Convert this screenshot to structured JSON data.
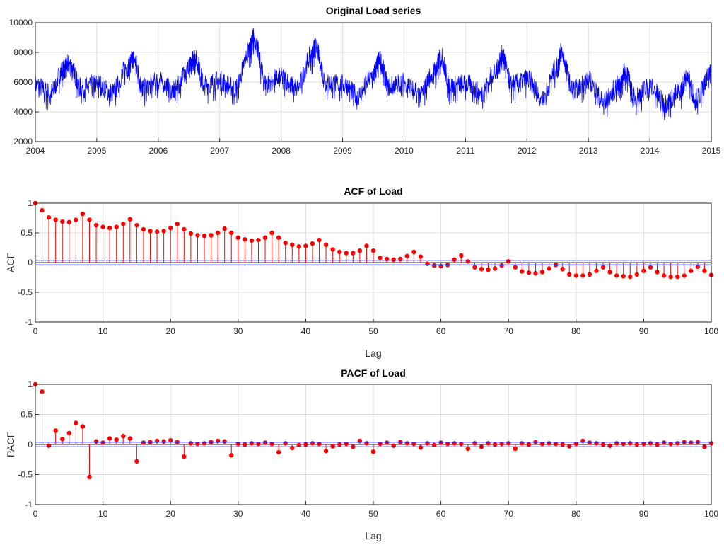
{
  "colors": {
    "series_line": "#0000ff",
    "stem": "#ff0000",
    "bound": "#0000cc",
    "grid": "#dcdcdc",
    "axis": "#262626"
  },
  "chart_data": [
    {
      "type": "line",
      "title": "Original Load series",
      "xlabel": "",
      "ylabel": "",
      "xlim": [
        2004,
        2015
      ],
      "ylim": [
        2000,
        10000
      ],
      "xticks": [
        "2004",
        "2005",
        "2006",
        "2007",
        "2008",
        "2009",
        "2010",
        "2011",
        "2012",
        "2013",
        "2014",
        "2015"
      ],
      "yticks": [
        "2000",
        "4000",
        "6000",
        "8000",
        "10000"
      ],
      "grid": true,
      "series": [
        {
          "x": [
            2004.0,
            2004.25,
            2004.45,
            2004.55,
            2004.75,
            2005.0,
            2005.25,
            2005.5,
            2005.6,
            2005.75,
            2006.0,
            2006.25,
            2006.5,
            2006.6,
            2006.75,
            2007.0,
            2007.25,
            2007.5,
            2007.55,
            2007.75,
            2008.0,
            2008.25,
            2008.5,
            2008.55,
            2008.75,
            2009.0,
            2009.25,
            2009.5,
            2009.6,
            2009.75,
            2010.0,
            2010.25,
            2010.5,
            2010.6,
            2010.75,
            2011.0,
            2011.25,
            2011.5,
            2011.6,
            2011.75,
            2012.0,
            2012.25,
            2012.5,
            2012.55,
            2012.75,
            2013.0,
            2013.25,
            2013.5,
            2013.6,
            2013.75,
            2014.0,
            2014.25,
            2014.5,
            2014.6,
            2014.75,
            2015.0
          ],
          "y": [
            5800,
            5300,
            6800,
            7200,
            5600,
            5900,
            5300,
            7000,
            7600,
            5600,
            6100,
            5400,
            7000,
            7700,
            5800,
            6100,
            5600,
            8300,
            9000,
            6000,
            6300,
            5600,
            7800,
            8300,
            5900,
            5900,
            5100,
            6500,
            7500,
            5700,
            6000,
            5200,
            6700,
            7700,
            5700,
            5900,
            5300,
            6800,
            7800,
            5800,
            6200,
            5000,
            7000,
            8000,
            5500,
            6100,
            4700,
            5800,
            6700,
            5000,
            5700,
            4600,
            5400,
            6400,
            4900,
            6500
          ]
        }
      ]
    },
    {
      "type": "stem",
      "title": "ACF of Load",
      "xlabel": "Lag",
      "ylabel": "ACF",
      "xlim": [
        0,
        100
      ],
      "ylim": [
        -1,
        1
      ],
      "xticks": [
        "0",
        "10",
        "20",
        "30",
        "40",
        "50",
        "60",
        "70",
        "80",
        "90",
        "100"
      ],
      "yticks": [
        "-1",
        "-0.5",
        "0",
        "0.5",
        "1"
      ],
      "bounds": [
        0.04,
        -0.04
      ],
      "grid": true,
      "values": [
        1.0,
        0.88,
        0.76,
        0.72,
        0.69,
        0.68,
        0.72,
        0.82,
        0.72,
        0.63,
        0.6,
        0.58,
        0.6,
        0.65,
        0.73,
        0.63,
        0.56,
        0.53,
        0.52,
        0.53,
        0.58,
        0.65,
        0.56,
        0.49,
        0.46,
        0.45,
        0.46,
        0.5,
        0.57,
        0.5,
        0.42,
        0.39,
        0.37,
        0.38,
        0.42,
        0.5,
        0.42,
        0.33,
        0.3,
        0.27,
        0.28,
        0.32,
        0.38,
        0.3,
        0.22,
        0.18,
        0.16,
        0.16,
        0.2,
        0.28,
        0.2,
        0.08,
        0.06,
        0.05,
        0.06,
        0.11,
        0.18,
        0.1,
        -0.02,
        -0.05,
        -0.06,
        -0.04,
        0.05,
        0.12,
        0.02,
        -0.08,
        -0.11,
        -0.12,
        -0.1,
        -0.05,
        0.02,
        -0.08,
        -0.15,
        -0.17,
        -0.18,
        -0.16,
        -0.1,
        -0.04,
        -0.11,
        -0.2,
        -0.22,
        -0.22,
        -0.2,
        -0.14,
        -0.08,
        -0.16,
        -0.22,
        -0.23,
        -0.24,
        -0.2,
        -0.14,
        -0.08,
        -0.16,
        -0.22,
        -0.24,
        -0.24,
        -0.22,
        -0.14,
        -0.07,
        -0.14,
        -0.21
      ]
    },
    {
      "type": "stem",
      "title": "PACF of Load",
      "xlabel": "Lag",
      "ylabel": "PACF",
      "xlim": [
        0,
        100
      ],
      "ylim": [
        -1,
        1
      ],
      "xticks": [
        "0",
        "10",
        "20",
        "30",
        "40",
        "50",
        "60",
        "70",
        "80",
        "90",
        "100"
      ],
      "yticks": [
        "-1",
        "-0.5",
        "0",
        "0.5",
        "1"
      ],
      "bounds": [
        0.04,
        -0.04
      ],
      "grid": true,
      "values": [
        1.0,
        0.88,
        -0.02,
        0.23,
        0.09,
        0.19,
        0.36,
        0.3,
        -0.54,
        0.05,
        0.03,
        0.1,
        0.08,
        0.14,
        0.1,
        -0.28,
        0.03,
        0.04,
        0.06,
        0.05,
        0.07,
        0.04,
        -0.2,
        0.02,
        0.01,
        0.02,
        0.04,
        0.06,
        0.05,
        -0.18,
        0.01,
        0.0,
        0.02,
        0.01,
        0.03,
        0.01,
        -0.13,
        0.02,
        -0.06,
        -0.01,
        0.0,
        0.02,
        0.01,
        -0.11,
        -0.03,
        0.0,
        0.01,
        -0.04,
        0.06,
        0.02,
        -0.12,
        0.01,
        0.03,
        -0.02,
        0.04,
        0.02,
        0.01,
        -0.05,
        0.02,
        -0.01,
        0.03,
        0.01,
        0.02,
        0.01,
        -0.07,
        0.02,
        -0.04,
        0.02,
        0.0,
        0.01,
        0.02,
        -0.07,
        0.02,
        0.0,
        0.04,
        0.01,
        0.02,
        0.01,
        0.0,
        -0.03,
        0.01,
        0.06,
        0.03,
        0.02,
        0.0,
        -0.02,
        0.02,
        0.01,
        0.02,
        0.0,
        0.01,
        0.02,
        0.0,
        0.03,
        0.01,
        0.02,
        0.04,
        0.03,
        0.04,
        -0.04,
        0.02
      ]
    }
  ]
}
